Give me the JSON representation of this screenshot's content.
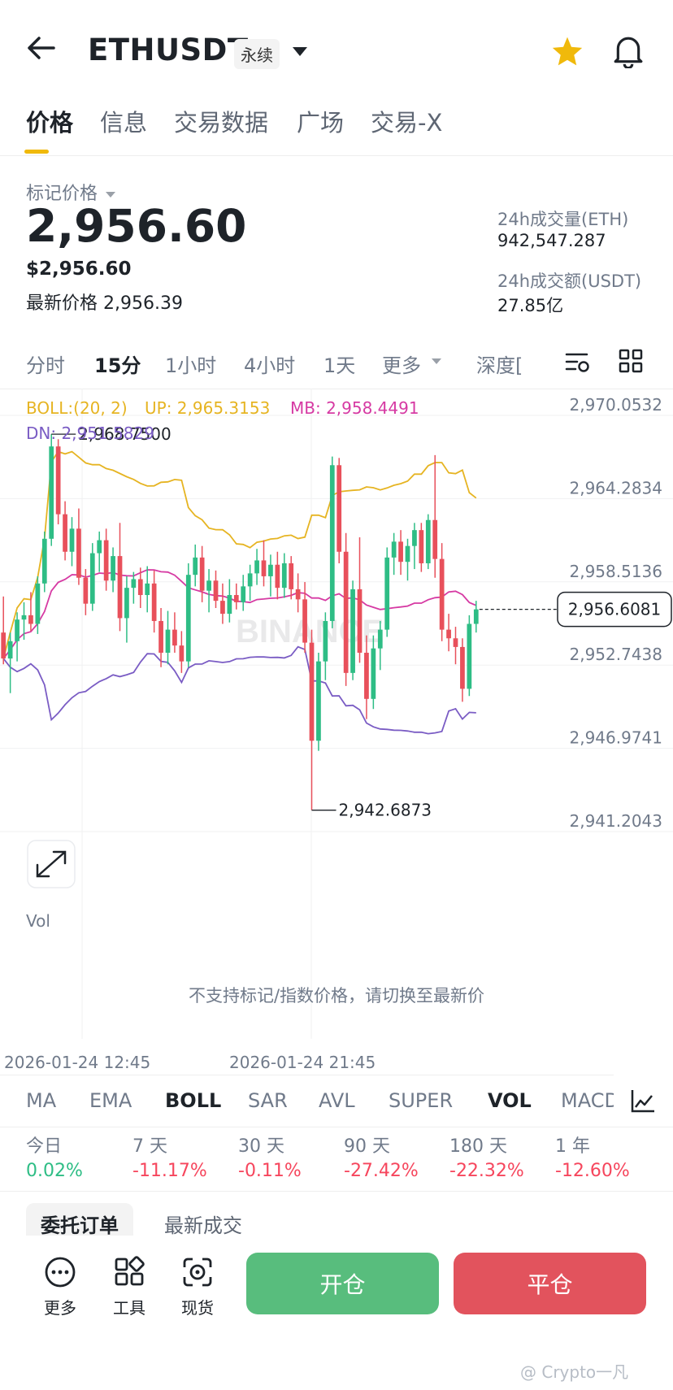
{
  "header": {
    "title": "ETHUSDT",
    "badge": "永续"
  },
  "tabs": [
    "价格",
    "信息",
    "交易数据",
    "广场",
    "交易-X"
  ],
  "price": {
    "label": "标记价格",
    "value": "2,956.60",
    "usd": "$2,956.60",
    "latest_label": "最新价格",
    "latest_value": "2,956.39",
    "vol_label": "24h成交量(ETH)",
    "vol_value": "942,547.287",
    "amount_label": "24h成交额(USDT)",
    "amount_value": "27.85亿"
  },
  "timeframes": [
    "分时",
    "15分",
    "1小时",
    "4小时",
    "1天",
    "更多",
    "深度["
  ],
  "chart_data": {
    "type": "candlestick",
    "indicator": {
      "boll_label": "BOLL:(20, 2)",
      "up_label": "UP: 2,965.3153",
      "mb_label": "MB: 2,958.4491",
      "dn_label": "DN: 2,951.5829"
    },
    "y_ticks": [
      "2,970.0532",
      "2,964.2834",
      "2,958.5136",
      "2,952.7438",
      "2,946.9741",
      "2,941.2043"
    ],
    "y_tick_values": [
      2970.0532,
      2964.2834,
      2958.5136,
      2952.7438,
      2946.9741,
      2941.2043
    ],
    "ylim": [
      2941.2043,
      2970.0532
    ],
    "current_price_label": "2,956.6081",
    "current_price": 2956.6081,
    "high_label": "2,968.7500",
    "low_label": "2,942.6873",
    "x_labels": [
      "2026-01-24 12:45",
      "2026-01-24 21:45"
    ],
    "vol_label": "Vol",
    "vol_message": "不支持标记/指数价格，请切换至最新价",
    "candles": [
      [
        2955.0,
        2957.5,
        2952.8,
        2953.2
      ],
      [
        2953.2,
        2955.0,
        2950.8,
        2954.4
      ],
      [
        2954.4,
        2956.4,
        2953.0,
        2955.9
      ],
      [
        2955.9,
        2957.1,
        2954.5,
        2956.2
      ],
      [
        2956.2,
        2957.8,
        2955.1,
        2955.6
      ],
      [
        2955.6,
        2958.9,
        2954.9,
        2958.4
      ],
      [
        2958.4,
        2962.0,
        2957.8,
        2961.5
      ],
      [
        2961.5,
        2968.75,
        2961.0,
        2967.9
      ],
      [
        2967.9,
        2968.4,
        2962.5,
        2963.2
      ],
      [
        2963.2,
        2964.1,
        2960.0,
        2960.6
      ],
      [
        2960.6,
        2963.0,
        2959.6,
        2962.2
      ],
      [
        2962.2,
        2963.6,
        2958.3,
        2958.8
      ],
      [
        2958.8,
        2959.4,
        2956.2,
        2957.0
      ],
      [
        2957.0,
        2961.2,
        2956.5,
        2960.5
      ],
      [
        2960.5,
        2962.0,
        2959.2,
        2961.4
      ],
      [
        2961.4,
        2962.2,
        2957.9,
        2958.6
      ],
      [
        2958.6,
        2960.9,
        2957.8,
        2960.3
      ],
      [
        2960.3,
        2962.6,
        2955.1,
        2956.0
      ],
      [
        2956.0,
        2958.9,
        2954.3,
        2958.1
      ],
      [
        2958.1,
        2959.2,
        2957.0,
        2958.7
      ],
      [
        2958.7,
        2959.5,
        2956.7,
        2957.6
      ],
      [
        2957.6,
        2959.6,
        2956.4,
        2958.4
      ],
      [
        2958.4,
        2959.3,
        2955.0,
        2955.8
      ],
      [
        2955.8,
        2956.7,
        2952.6,
        2953.6
      ],
      [
        2953.6,
        2956.5,
        2952.8,
        2955.2
      ],
      [
        2955.2,
        2956.4,
        2953.6,
        2954.1
      ],
      [
        2954.1,
        2955.1,
        2952.2,
        2953.0
      ],
      [
        2953.0,
        2959.8,
        2952.6,
        2959.0
      ],
      [
        2959.0,
        2961.1,
        2958.2,
        2960.2
      ],
      [
        2960.2,
        2961.0,
        2957.1,
        2957.9
      ],
      [
        2957.9,
        2959.4,
        2956.4,
        2958.6
      ],
      [
        2958.6,
        2959.3,
        2956.7,
        2957.2
      ],
      [
        2957.2,
        2958.4,
        2955.6,
        2956.3
      ],
      [
        2956.3,
        2958.7,
        2955.7,
        2957.6
      ],
      [
        2957.6,
        2958.4,
        2956.6,
        2957.1
      ],
      [
        2957.1,
        2959.0,
        2956.5,
        2958.2
      ],
      [
        2958.2,
        2959.7,
        2957.2,
        2959.1
      ],
      [
        2959.1,
        2960.8,
        2958.3,
        2960.0
      ],
      [
        2960.0,
        2961.4,
        2958.2,
        2958.9
      ],
      [
        2958.9,
        2960.4,
        2957.5,
        2959.7
      ],
      [
        2959.7,
        2960.6,
        2957.3,
        2958.1
      ],
      [
        2958.1,
        2960.5,
        2957.4,
        2959.8
      ],
      [
        2959.8,
        2960.3,
        2957.3,
        2958.0
      ],
      [
        2958.0,
        2959.1,
        2956.4,
        2957.3
      ],
      [
        2957.3,
        2958.5,
        2953.6,
        2954.3
      ],
      [
        2954.3,
        2955.2,
        2942.6873,
        2947.5
      ],
      [
        2947.5,
        2953.6,
        2946.8,
        2953.0
      ],
      [
        2953.0,
        2956.4,
        2951.7,
        2955.8
      ],
      [
        2955.8,
        2967.2,
        2955.3,
        2966.6
      ],
      [
        2966.6,
        2967.1,
        2959.8,
        2960.6
      ],
      [
        2960.6,
        2961.9,
        2951.3,
        2952.2
      ],
      [
        2952.2,
        2958.6,
        2951.7,
        2958.0
      ],
      [
        2958.0,
        2961.6,
        2952.9,
        2953.6
      ],
      [
        2953.6,
        2954.8,
        2949.0,
        2950.4
      ],
      [
        2950.4,
        2954.8,
        2949.7,
        2953.9
      ],
      [
        2953.9,
        2955.8,
        2952.4,
        2955.2
      ],
      [
        2955.2,
        2960.9,
        2954.7,
        2960.2
      ],
      [
        2960.2,
        2961.9,
        2959.0,
        2961.3
      ],
      [
        2961.3,
        2962.1,
        2959.0,
        2959.9
      ],
      [
        2959.9,
        2961.5,
        2958.6,
        2961.0
      ],
      [
        2961.0,
        2962.6,
        2959.4,
        2962.1
      ],
      [
        2962.1,
        2962.6,
        2959.2,
        2959.8
      ],
      [
        2959.8,
        2963.2,
        2959.4,
        2962.8
      ],
      [
        2962.8,
        2967.3,
        2958.8,
        2960.1
      ],
      [
        2960.1,
        2961.2,
        2954.4,
        2955.2
      ],
      [
        2955.2,
        2956.3,
        2953.7,
        2954.6
      ],
      [
        2954.6,
        2955.4,
        2952.8,
        2954.0
      ],
      [
        2954.0,
        2954.6,
        2950.2,
        2951.1
      ],
      [
        2951.1,
        2956.2,
        2950.6,
        2955.6
      ],
      [
        2955.6,
        2957.2,
        2955.0,
        2956.6081
      ]
    ]
  },
  "indicator_tabs": [
    "MA",
    "EMA",
    "BOLL",
    "SAR",
    "AVL",
    "SUPER",
    "VOL",
    "MACD"
  ],
  "performance": [
    {
      "label": "今日",
      "value": "0.02%",
      "color": "#2ebd85"
    },
    {
      "label": "7 天",
      "value": "-11.17%",
      "color": "#f6465d"
    },
    {
      "label": "30 天",
      "value": "-0.11%",
      "color": "#f6465d"
    },
    {
      "label": "90 天",
      "value": "-27.42%",
      "color": "#f6465d"
    },
    {
      "label": "180 天",
      "value": "-22.32%",
      "color": "#f6465d"
    },
    {
      "label": "1 年",
      "value": "-12.60%",
      "color": "#f6465d"
    }
  ],
  "order_tabs": [
    "委托订单",
    "最新成交"
  ],
  "bottom": {
    "more": "更多",
    "tools": "工具",
    "spot": "现货",
    "open": "开仓",
    "close": "平仓"
  },
  "watermark": "BINANCE",
  "credit": "@ Crypto一凡",
  "colors": {
    "up": "#2ebd85",
    "down": "#e8505b",
    "accent": "#f0b90b",
    "boll_up": "#e6b422",
    "boll_mb": "#d63aa3",
    "boll_dn": "#7a5cc4"
  }
}
